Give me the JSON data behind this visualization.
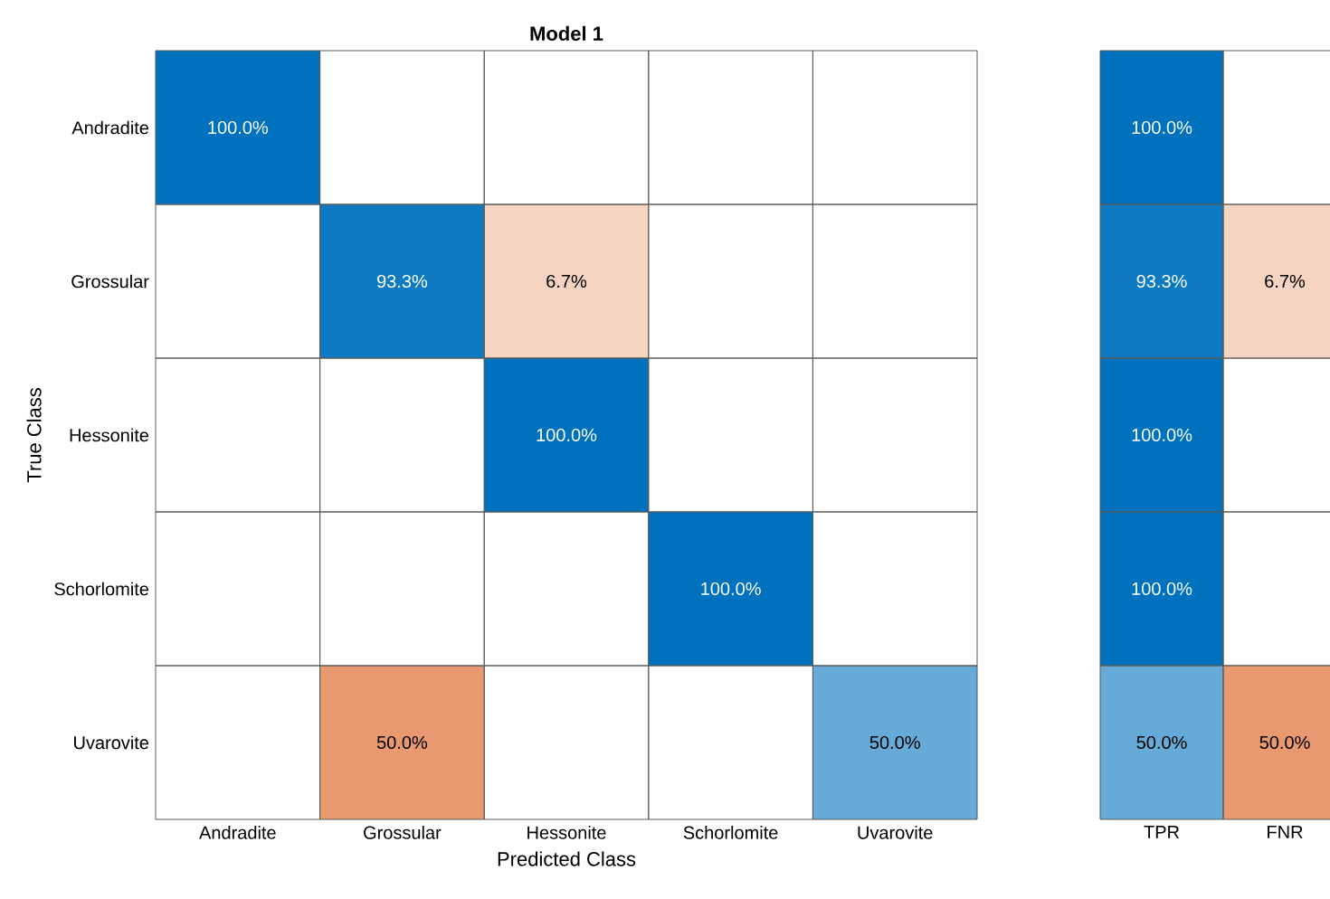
{
  "chart_data": [
    {
      "type": "heatmap",
      "title": "Model 1",
      "xlabel": "Predicted Class",
      "ylabel": "True Class",
      "categories": [
        "Andradite",
        "Grossular",
        "Hessonite",
        "Schorlomite",
        "Uvarovite"
      ],
      "y_categories": [
        "Andradite",
        "Grossular",
        "Hessonite",
        "Schorlomite",
        "Uvarovite"
      ],
      "cells": [
        [
          100,
          null,
          null,
          null,
          null
        ],
        [
          null,
          93.3,
          6.7,
          null,
          null
        ],
        [
          null,
          null,
          100,
          null,
          null
        ],
        [
          null,
          null,
          null,
          100,
          null
        ],
        [
          null,
          50,
          null,
          null,
          50
        ]
      ],
      "cell_labels": [
        [
          "100.0%",
          null,
          null,
          null,
          null
        ],
        [
          null,
          "93.3%",
          "6.7%",
          null,
          null
        ],
        [
          null,
          null,
          "100.0%",
          null,
          null
        ],
        [
          null,
          null,
          null,
          "100.0%",
          null
        ],
        [
          null,
          "50.0%",
          null,
          null,
          "50.0%"
        ]
      ],
      "colors": [
        [
          "#0072bd",
          null,
          null,
          null,
          null
        ],
        [
          null,
          "#0072bd",
          "#d9550f",
          null,
          null
        ],
        [
          null,
          null,
          "#0072bd",
          null,
          null
        ],
        [
          null,
          null,
          null,
          "#0072bd",
          null
        ],
        [
          null,
          "#d9550f",
          null,
          null,
          "#0072bd"
        ]
      ]
    },
    {
      "type": "heatmap",
      "categories": [
        "TPR",
        "FNR"
      ],
      "tick_labels": "x",
      "y_categories": [
        null,
        null,
        null,
        null,
        null
      ],
      "cells": [
        [
          100,
          null
        ],
        [
          93.3,
          6.7
        ],
        [
          100,
          null
        ],
        [
          100,
          null
        ],
        [
          50,
          50
        ]
      ],
      "cell_labels": [
        [
          "100.0%",
          null
        ],
        [
          "93.3%",
          "6.7%"
        ],
        [
          "100.0%",
          null
        ],
        [
          "100.0%",
          null
        ],
        [
          "50.0%",
          "50.0%"
        ]
      ],
      "colors": [
        [
          "#0072bd",
          null
        ],
        [
          "#0072bd",
          "#d9550f"
        ],
        [
          "#0072bd",
          null
        ],
        [
          "#0072bd",
          null
        ],
        [
          "#0072bd",
          "#d9550f"
        ]
      ]
    }
  ]
}
